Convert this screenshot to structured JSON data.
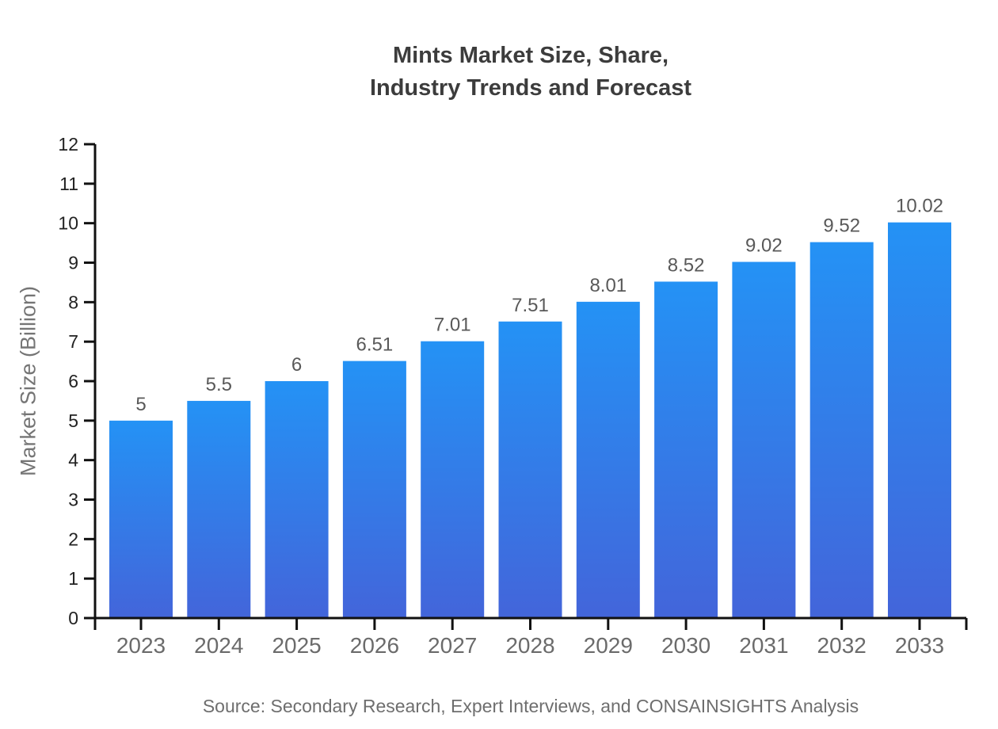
{
  "chart_data": {
    "type": "bar",
    "title": "Mints Market Size, Share, Industry Trends and Forecast",
    "title_lines": [
      "Mints Market Size, Share,",
      "Industry Trends and Forecast"
    ],
    "categories": [
      "2023",
      "2024",
      "2025",
      "2026",
      "2027",
      "2028",
      "2029",
      "2030",
      "2031",
      "2032",
      "2033"
    ],
    "values": [
      5,
      5.5,
      6,
      6.51,
      7.01,
      7.51,
      8.01,
      8.52,
      9.02,
      9.52,
      10.02
    ],
    "value_labels": [
      "5",
      "5.5",
      "6",
      "6.51",
      "7.01",
      "7.51",
      "8.01",
      "8.52",
      "9.02",
      "9.52",
      "10.02"
    ],
    "xlabel": "",
    "ylabel": "Market Size (Billion)",
    "ylim": [
      0,
      12
    ],
    "yticks": [
      0,
      1,
      2,
      3,
      4,
      5,
      6,
      7,
      8,
      9,
      10,
      11,
      12
    ],
    "grid": false,
    "legend": false,
    "source_note": "Source: Secondary Research, Expert Interviews, and CONSAINSIGHTS Analysis",
    "colors": {
      "bar_gradient_top": "#2492f5",
      "bar_gradient_bottom": "#4365da",
      "axis": "#111111",
      "ytick_label": "#222222",
      "category_label": "#6b6b6b",
      "value_label": "#595959",
      "title": "#3c3c3c",
      "axis_title": "#757575",
      "source_text": "#6e6e6e"
    }
  }
}
